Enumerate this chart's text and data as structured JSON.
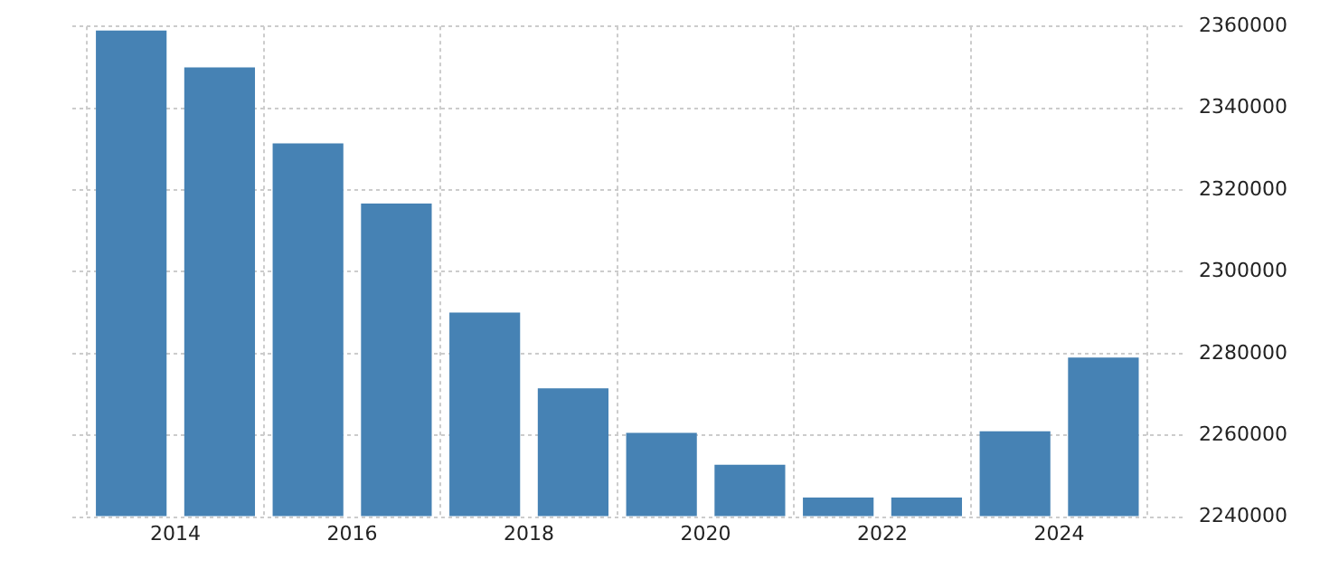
{
  "chart_data": {
    "type": "bar",
    "x": [
      "2013-07",
      "2014-07",
      "2015-07",
      "2016-07",
      "2017-07",
      "2018-07",
      "2019-07",
      "2020-07",
      "2021-07",
      "2022-07",
      "2023-07",
      "2024-07"
    ],
    "values": [
      2359000,
      2350000,
      2331400,
      2316700,
      2290000,
      2271500,
      2260600,
      2252800,
      2244800,
      2244800,
      2261000,
      2279000
    ],
    "color": "#4682b4",
    "xlim": [
      "2012-11",
      "2025-06"
    ],
    "xticks": [
      "2014",
      "2016",
      "2018",
      "2020",
      "2022",
      "2024"
    ],
    "ylim": [
      2240000,
      2360000
    ],
    "yticks": [
      2240000,
      2260000,
      2280000,
      2300000,
      2320000,
      2340000,
      2360000
    ],
    "grid": true
  }
}
